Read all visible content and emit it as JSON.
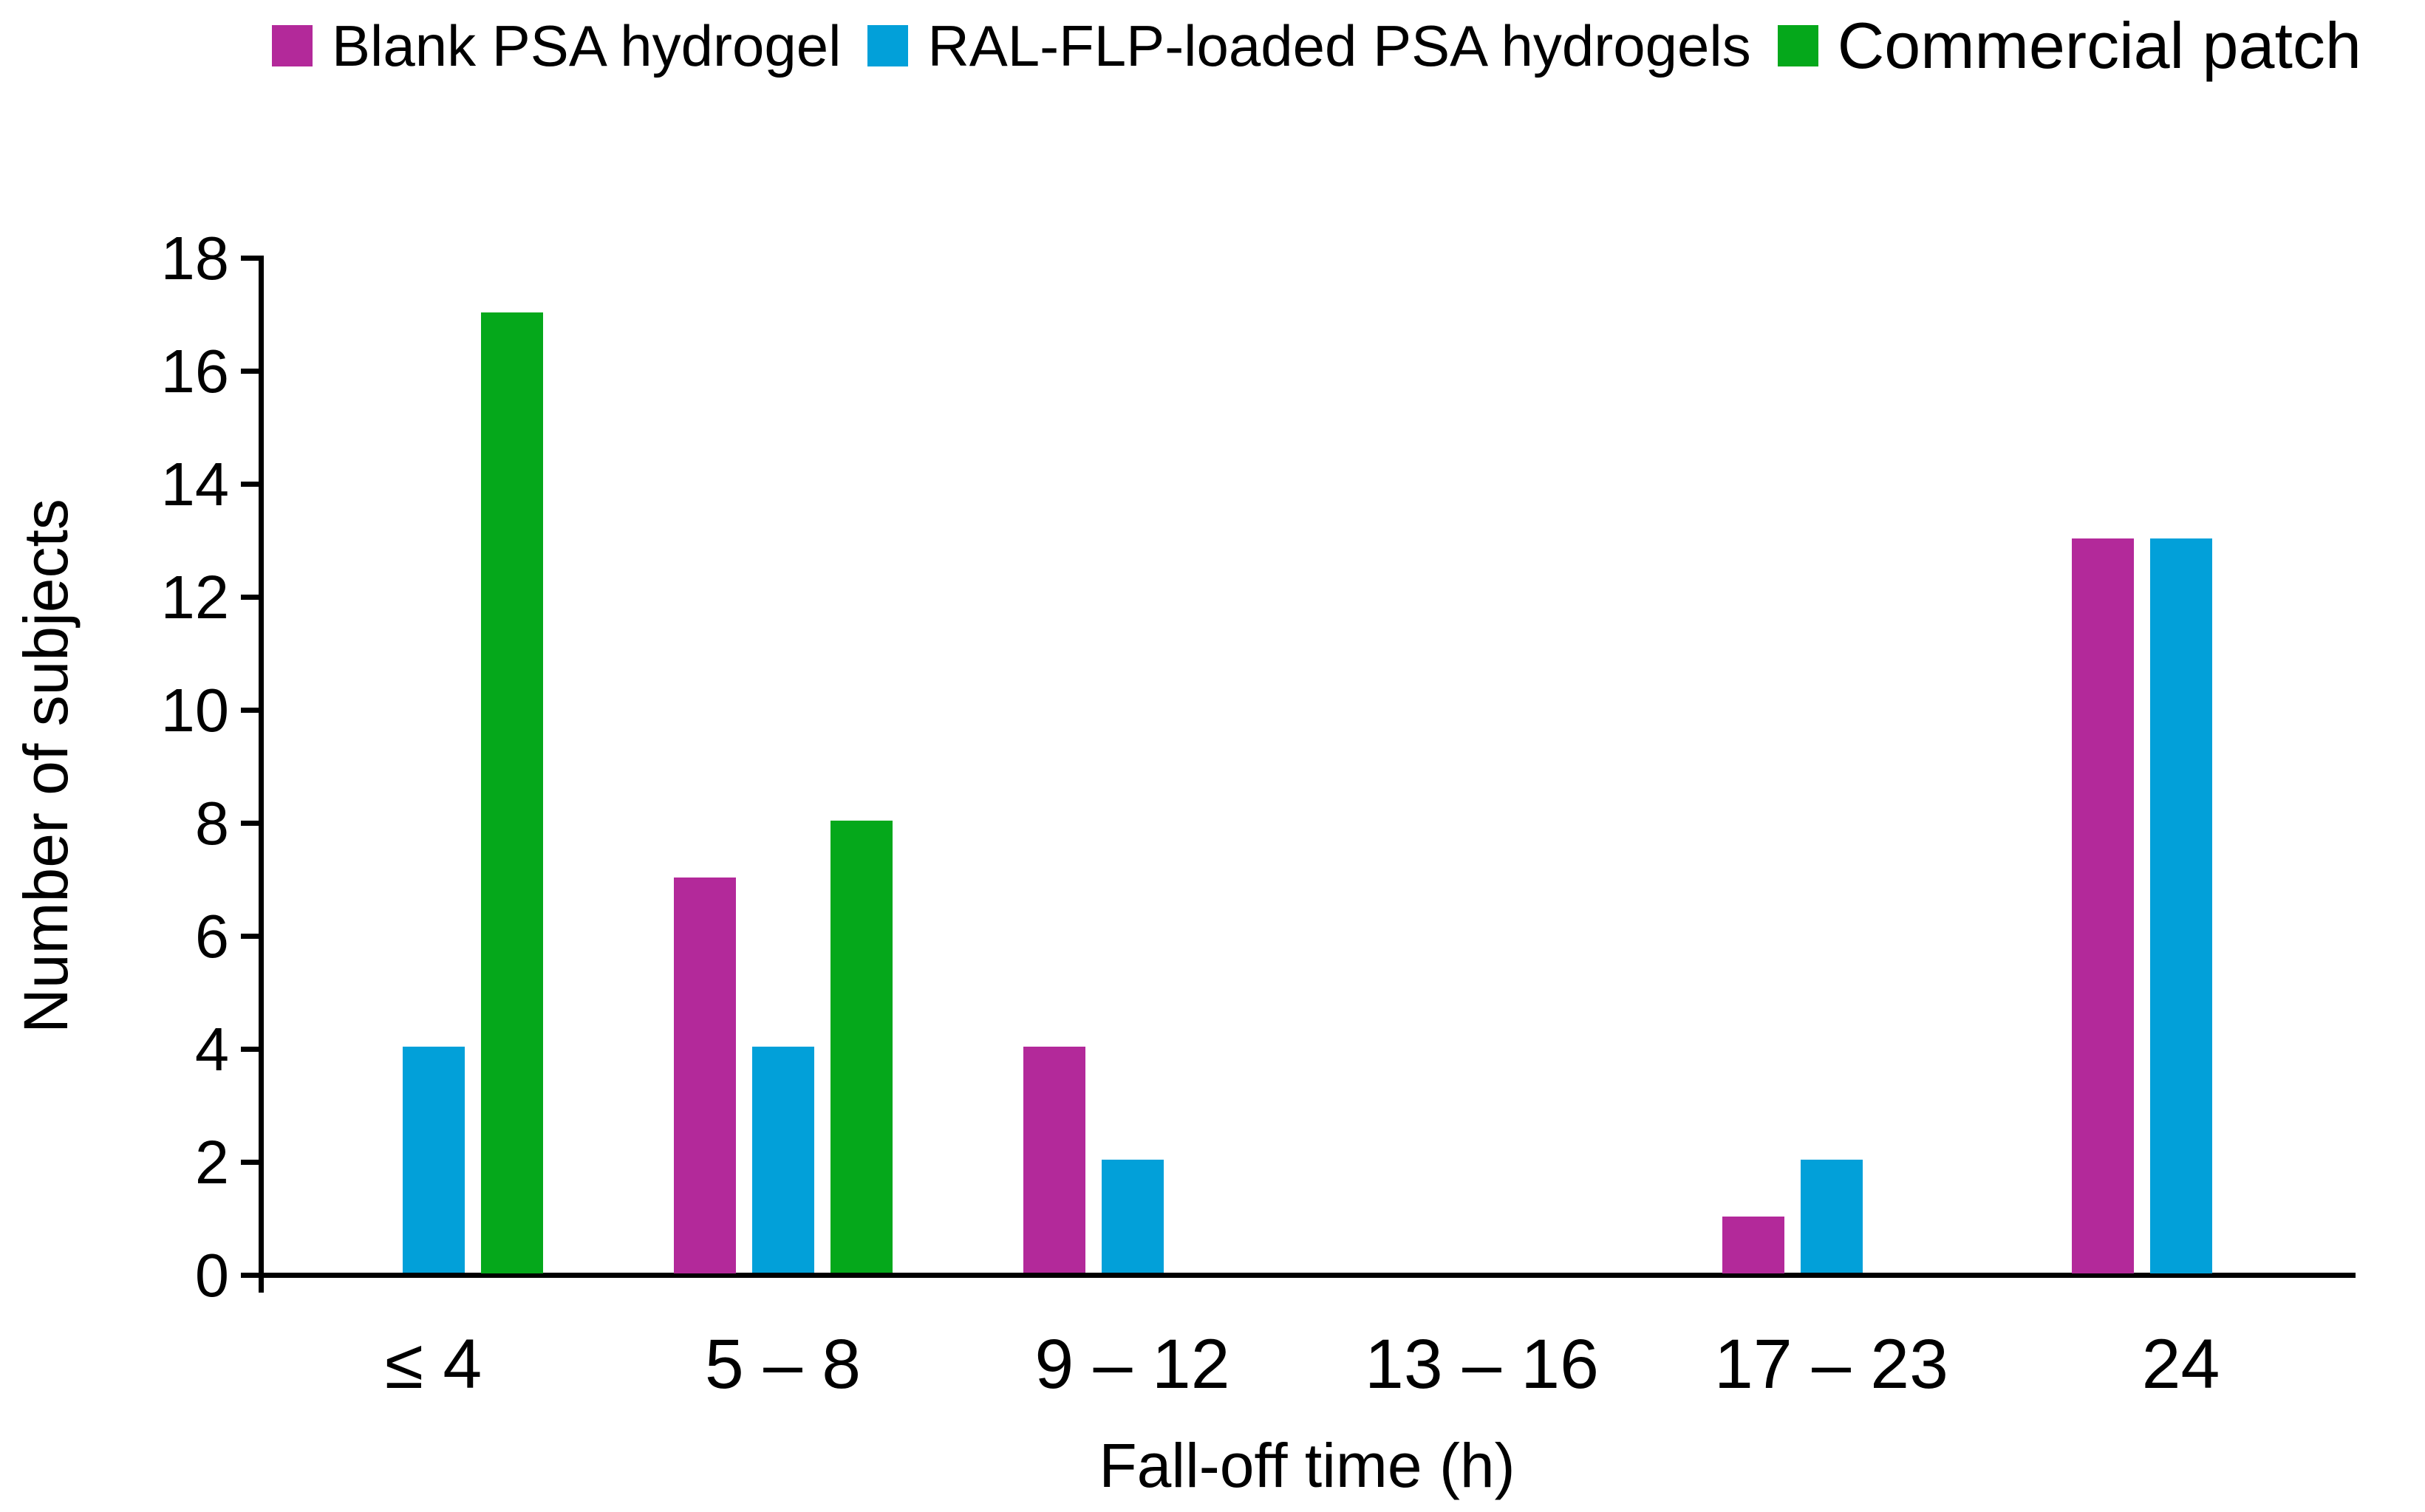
{
  "chart_data": {
    "type": "bar",
    "title": "",
    "categories": [
      "≤ 4",
      "5 – 8",
      "9 – 12",
      "13 – 16",
      "17 – 23",
      "24"
    ],
    "series": [
      {
        "name": "Blank PSA hydrogel",
        "color": "#B3299A",
        "values": [
          0,
          7,
          4,
          0,
          1,
          13
        ]
      },
      {
        "name": "RAL-FLP-loaded PSA hydrogels",
        "color": "#02A0D9",
        "values": [
          4,
          4,
          2,
          0,
          2,
          13
        ]
      },
      {
        "name": "Commercial patch",
        "color": "#05A81B",
        "values": [
          17,
          8,
          0,
          0,
          0,
          0
        ]
      }
    ],
    "xlabel": "Fall-off time (h)",
    "ylabel": "Number of subjects",
    "ylim": [
      0,
      18
    ],
    "ytick_step": 2,
    "y_ticks": [
      0,
      2,
      4,
      6,
      8,
      10,
      12,
      14,
      16,
      18
    ],
    "legend_position": "top",
    "grid": false,
    "plot_background": "#ffffff",
    "axis_color": "#000000"
  }
}
